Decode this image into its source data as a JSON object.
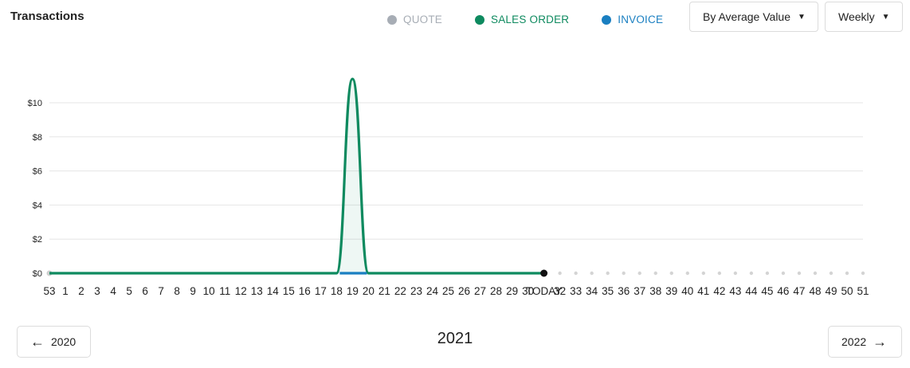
{
  "title": "Transactions",
  "legend": [
    {
      "label": "QUOTE",
      "color": "#a7adb5",
      "text_color": "#a7adb5"
    },
    {
      "label": "SALES ORDER",
      "color": "#0e8a5f",
      "text_color": "#0e8a5f"
    },
    {
      "label": "INVOICE",
      "color": "#1a7fc1",
      "text_color": "#1a7fc1"
    }
  ],
  "controls": {
    "metric_label": "By Average Value",
    "period_label": "Weekly"
  },
  "navigation": {
    "prev_label": "2020",
    "next_label": "2022",
    "current_year": "2021"
  },
  "chart_data": {
    "type": "line",
    "x_ticks": [
      "53",
      "1",
      "2",
      "3",
      "4",
      "5",
      "6",
      "7",
      "8",
      "9",
      "10",
      "11",
      "12",
      "13",
      "14",
      "15",
      "16",
      "17",
      "18",
      "19",
      "20",
      "21",
      "22",
      "23",
      "24",
      "25",
      "26",
      "27",
      "28",
      "29",
      "30",
      "TODAY",
      "32",
      "33",
      "34",
      "35",
      "36",
      "37",
      "38",
      "39",
      "40",
      "41",
      "42",
      "43",
      "44",
      "45",
      "46",
      "47",
      "48",
      "49",
      "50",
      "51"
    ],
    "today_label": "TODAY",
    "ylim": [
      0,
      11
    ],
    "y_ticks": [
      0,
      2,
      4,
      6,
      8,
      10
    ],
    "y_tick_labels": [
      "$0",
      "$2",
      "$4",
      "$6",
      "$8",
      "$10"
    ],
    "grid": true,
    "series": [
      {
        "name": "SALES ORDER",
        "color": "#0e8a5f",
        "x": [
          "53",
          "1",
          "2",
          "3",
          "4",
          "5",
          "6",
          "7",
          "8",
          "9",
          "10",
          "11",
          "12",
          "13",
          "14",
          "15",
          "16",
          "17",
          "18",
          "19",
          "20",
          "21",
          "22",
          "23",
          "24",
          "25",
          "26",
          "27",
          "28",
          "29",
          "30",
          "TODAY"
        ],
        "values": [
          0,
          0,
          0,
          0,
          0,
          0,
          0,
          0,
          0,
          0,
          0,
          0,
          0,
          0,
          0,
          0,
          0,
          0,
          0,
          11.4,
          0,
          0,
          0,
          0,
          0,
          0,
          0,
          0,
          0,
          0,
          0,
          0
        ]
      },
      {
        "name": "INVOICE",
        "color": "#1a7fc1",
        "x": [
          "53",
          "1",
          "2",
          "3",
          "4",
          "5",
          "6",
          "7",
          "8",
          "9",
          "10",
          "11",
          "12",
          "13",
          "14",
          "15",
          "16",
          "17",
          "18",
          "19",
          "20",
          "21",
          "22",
          "23",
          "24",
          "25",
          "26",
          "27",
          "28",
          "29",
          "30",
          "TODAY"
        ],
        "values": [
          0,
          0,
          0,
          0,
          0,
          0,
          0,
          0,
          0,
          0,
          0,
          0,
          0,
          0,
          0,
          0,
          0,
          0,
          0,
          0,
          0,
          0,
          0,
          0,
          0,
          0,
          0,
          0,
          0,
          0,
          0,
          0
        ]
      }
    ]
  }
}
